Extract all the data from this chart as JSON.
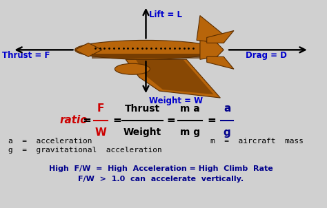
{
  "background_color": "#d0d0d0",
  "blue_color": "#0000cc",
  "red_color": "#cc0000",
  "black_color": "#000000",
  "dark_blue": "#00008B",
  "plane_color": "#b8650a",
  "plane_dark": "#5a2d00",
  "lift_label": "Lift = L",
  "drag_label": "Drag = D",
  "thrust_label": "Thrust = F",
  "weight_label": "Weight = W",
  "def_a": "a  =  acceleration",
  "def_g": "g  =  gravitational  acceleration",
  "def_m": "m  =  aircraft  mass",
  "bottom_line1": "High  F/W  =  High  Acceleration = High  Climb  Rate",
  "bottom_line2": "F/W  >  1.0  can  accelerate  vertically."
}
